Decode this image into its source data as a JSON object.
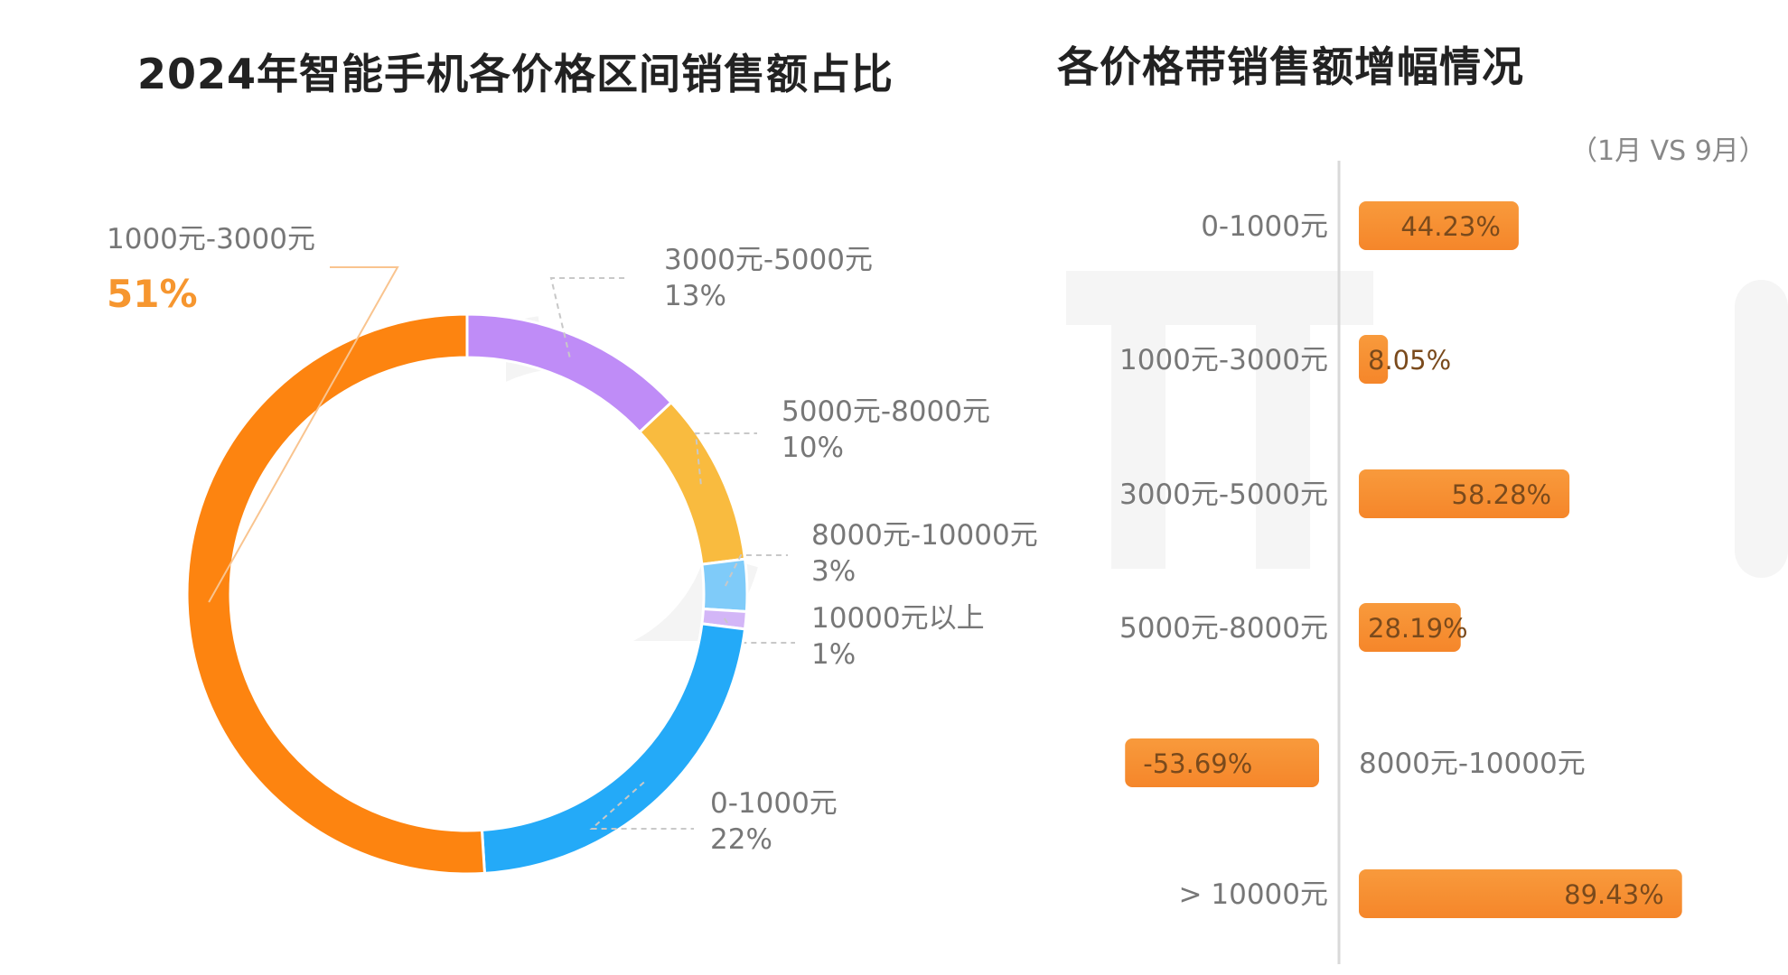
{
  "left_title": "2024年智能手机各价格区间销售额占比",
  "right_title": "各价格带销售额增幅情况",
  "subtitle": "（1月 VS 9月）",
  "chart_data": [
    {
      "type": "pie",
      "title": "2024年智能手机各价格区间销售额占比",
      "donut": true,
      "slices": [
        {
          "label": "3000元-5000元",
          "value": 13,
          "value_label": "13%",
          "color": "#bf8cf7"
        },
        {
          "label": "5000元-8000元",
          "value": 10,
          "value_label": "10%",
          "color": "#f9bb3f"
        },
        {
          "label": "8000元-10000元",
          "value": 3,
          "value_label": "3%",
          "color": "#7fcbf9"
        },
        {
          "label": "10000元以上",
          "value": 1,
          "value_label": "1%",
          "color": "#d3b6f7"
        },
        {
          "label": "0-1000元",
          "value": 22,
          "value_label": "22%",
          "color": "#24aaf8"
        },
        {
          "label": "1000元-3000元",
          "value": 51,
          "value_label": "51%",
          "color": "#fd8410"
        }
      ],
      "highlight_color": "#f6962f"
    },
    {
      "type": "bar",
      "orientation": "horizontal",
      "title": "各价格带销售额增幅情况",
      "subtitle": "（1月 VS 9月）",
      "categories": [
        "0-1000元",
        "1000元-3000元",
        "3000元-5000元",
        "5000元-8000元",
        "8000元-10000元",
        "> 10000元"
      ],
      "values": [
        44.23,
        8.05,
        58.28,
        28.19,
        -53.69,
        89.43
      ],
      "value_labels": [
        "44.23%",
        "8.05%",
        "58.28%",
        "28.19%",
        "-53.69%",
        "89.43%"
      ],
      "unit": "%",
      "bar_color": "#f78f2a"
    }
  ]
}
